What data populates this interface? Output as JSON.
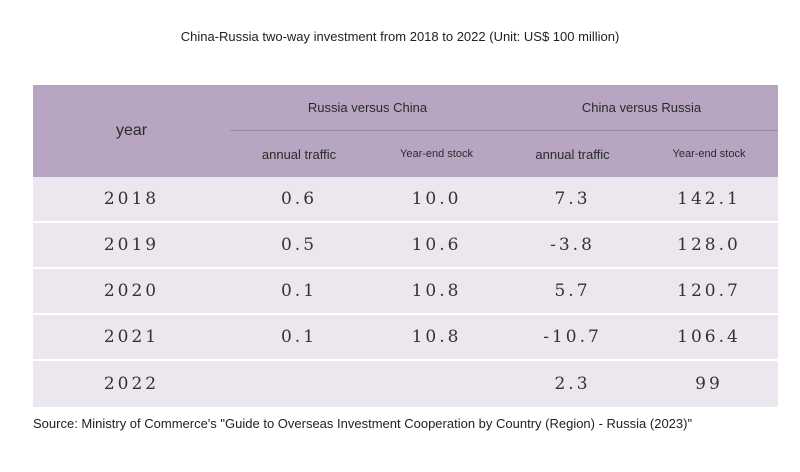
{
  "title": "China-Russia two-way investment from 2018 to 2022 (Unit: US$ 100 million)",
  "table": {
    "year_header": "year",
    "groups": [
      "Russia versus China",
      "China versus Russia"
    ],
    "subheaders": [
      "annual traffic",
      "Year-end stock",
      "annual traffic",
      "Year-end stock"
    ],
    "rows": [
      [
        "2018",
        "0.6",
        "10.0",
        "7.3",
        "142.1"
      ],
      [
        "2019",
        "0.5",
        "10.6",
        "-3.8",
        "128.0"
      ],
      [
        "2020",
        "0.1",
        "10.8",
        "5.7",
        "120.7"
      ],
      [
        "2021",
        "0.1",
        "10.8",
        "-10.7",
        "106.4"
      ],
      [
        "2022",
        null,
        null,
        "2.3",
        "99"
      ]
    ]
  },
  "source": "Source: Ministry of Commerce's \"Guide to Overseas Investment Cooperation by Country (Region) - Russia (2023)\""
}
